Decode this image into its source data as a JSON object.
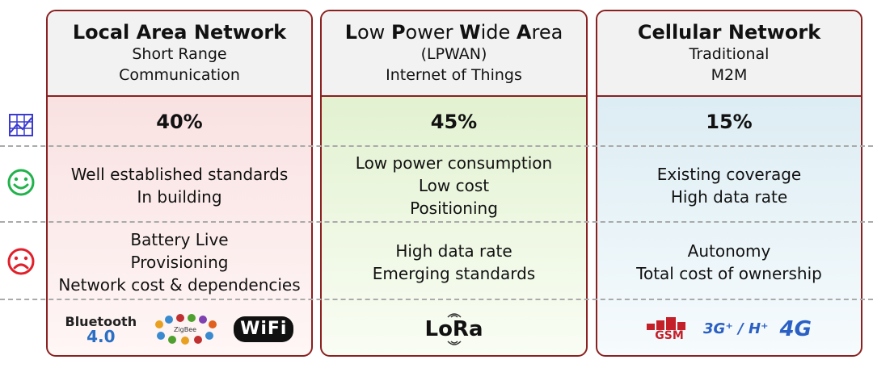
{
  "columns": [
    {
      "title": "Local Area Network",
      "subtitle1": "Short Range",
      "subtitle2": "Communication",
      "share": "40%",
      "pros": [
        "Well established standards",
        "In building"
      ],
      "cons": [
        "Battery Live",
        "Provisioning",
        "Network cost & dependencies"
      ],
      "logos": {
        "bluetooth": "Bluetooth",
        "bluetooth_version": "4.0",
        "zigbee": "ZigBee",
        "wifi": "WiFi"
      }
    },
    {
      "title_parts": [
        {
          "cap": "L",
          "rest": "ow "
        },
        {
          "cap": "P",
          "rest": "ower "
        },
        {
          "cap": "W",
          "rest": "ide "
        },
        {
          "cap": "A",
          "rest": "rea"
        }
      ],
      "subtitle1": "(LPWAN)",
      "subtitle2": "Internet of Things",
      "share": "45%",
      "pros": [
        "Low power consumption",
        "Low cost",
        "Positioning"
      ],
      "cons": [
        "High data rate",
        "Emerging standards"
      ],
      "logos": {
        "lora": "LoRa"
      }
    },
    {
      "title": "Cellular Network",
      "subtitle1": "Traditional",
      "subtitle2": "M2M",
      "share": "15%",
      "pros": [
        "Existing coverage",
        "High data rate"
      ],
      "cons": [
        "Autonomy",
        "Total cost of ownership"
      ],
      "logos": {
        "gsm": "GSM",
        "g3": "3G⁺ / H⁺",
        "g4": "4G"
      }
    }
  ],
  "icons": {
    "share_row": "chart-icon",
    "pros_row": "smiley-icon",
    "cons_row": "frown-icon"
  },
  "colors": {
    "border": "#8b2020",
    "lan": "#f7dada",
    "lpwan": "#dbeec5",
    "cellular": "#d4e8f0",
    "smile": "#22b24c",
    "frown": "#e0202a"
  }
}
